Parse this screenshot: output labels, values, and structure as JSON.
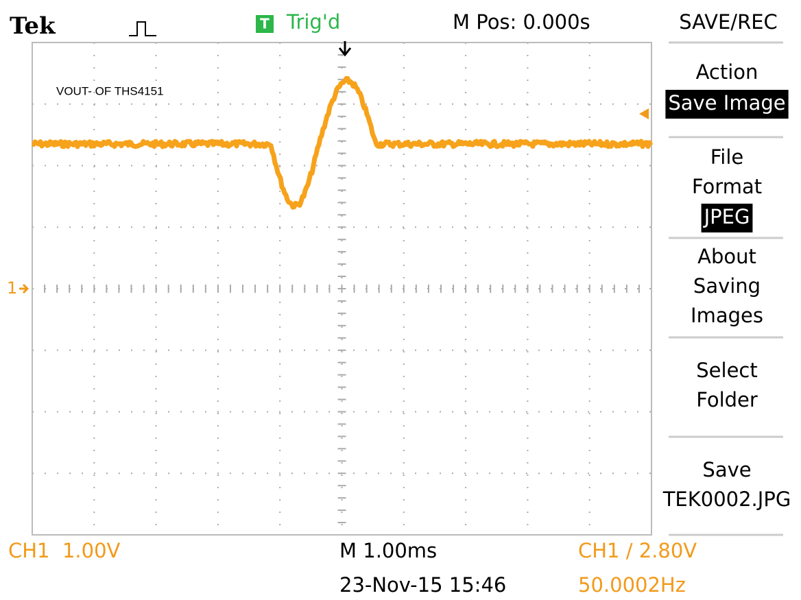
{
  "header": {
    "brand": "Tek",
    "trigger_icon": "T",
    "trigger_status": "Trig'd",
    "position": "M Pos: 0.000s",
    "menu_title": "SAVE/REC"
  },
  "annotation": "VOUT- OF THS4151",
  "channel_marker": "1",
  "menu": [
    {
      "lines": [
        "Action"
      ],
      "value": "Save Image"
    },
    {
      "lines": [
        "File",
        "Format"
      ],
      "value": "JPEG"
    },
    {
      "lines": [
        "About",
        "Saving",
        "Images"
      ]
    },
    {
      "lines": [
        "Select",
        "Folder"
      ]
    },
    {
      "lines": [
        "Save",
        "TEK0002.JPG"
      ]
    }
  ],
  "footer": {
    "channel_scale": "CH1  1.00V",
    "timebase": "M 1.00ms",
    "trigger_level": "CH1 ∕ 2.80V",
    "datetime": "23-Nov-15 15:46",
    "frequency": "50.0002Hz"
  }
}
